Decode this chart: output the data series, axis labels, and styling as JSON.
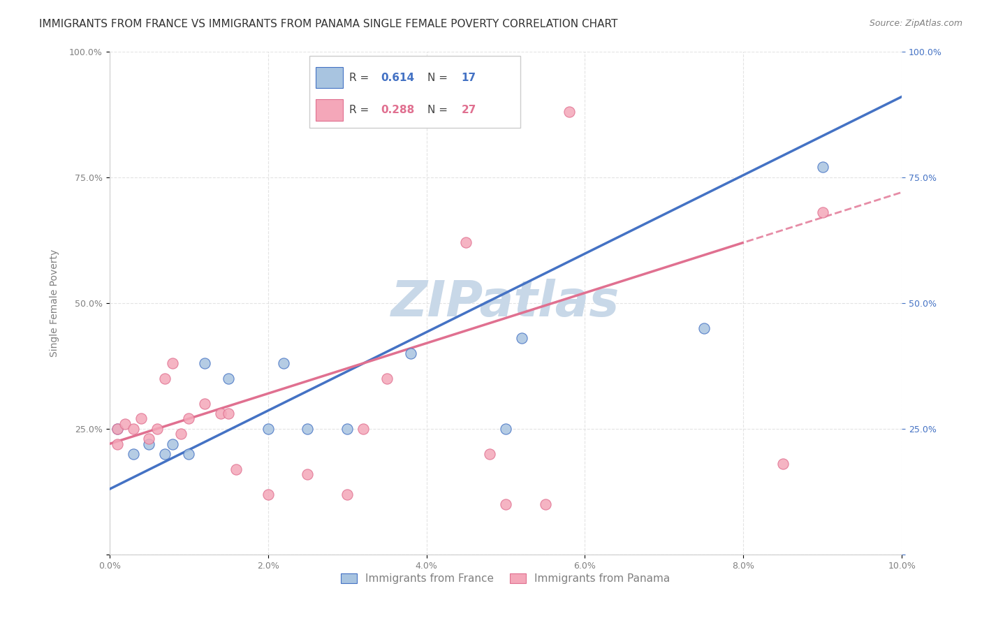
{
  "title": "IMMIGRANTS FROM FRANCE VS IMMIGRANTS FROM PANAMA SINGLE FEMALE POVERTY CORRELATION CHART",
  "source": "Source: ZipAtlas.com",
  "ylabel": "Single Female Poverty",
  "xlim": [
    0.0,
    10.0
  ],
  "ylim": [
    0.0,
    100.0
  ],
  "france_R": 0.614,
  "france_N": 17,
  "panama_R": 0.288,
  "panama_N": 27,
  "france_color": "#a8c4e0",
  "panama_color": "#f4a7b9",
  "france_line_color": "#4472c4",
  "panama_line_color": "#e07090",
  "france_points_x": [
    0.1,
    0.3,
    0.5,
    0.7,
    0.8,
    1.0,
    1.2,
    1.5,
    2.0,
    2.2,
    2.5,
    3.0,
    3.8,
    5.0,
    5.2,
    7.5,
    9.0
  ],
  "france_points_y": [
    25.0,
    20.0,
    22.0,
    20.0,
    22.0,
    20.0,
    38.0,
    35.0,
    25.0,
    38.0,
    25.0,
    25.0,
    40.0,
    25.0,
    43.0,
    45.0,
    77.0
  ],
  "panama_points_x": [
    0.1,
    0.1,
    0.2,
    0.3,
    0.4,
    0.5,
    0.6,
    0.7,
    0.8,
    0.9,
    1.0,
    1.2,
    1.4,
    1.5,
    1.6,
    2.0,
    2.5,
    3.0,
    3.2,
    3.5,
    4.5,
    4.8,
    5.0,
    5.5,
    5.8,
    8.5,
    9.0
  ],
  "panama_points_y": [
    25.0,
    22.0,
    26.0,
    25.0,
    27.0,
    23.0,
    25.0,
    35.0,
    38.0,
    24.0,
    27.0,
    30.0,
    28.0,
    28.0,
    17.0,
    12.0,
    16.0,
    12.0,
    25.0,
    35.0,
    62.0,
    20.0,
    10.0,
    10.0,
    88.0,
    18.0,
    68.0
  ],
  "france_slope": 7.8,
  "france_intercept": 13.0,
  "panama_slope": 5.0,
  "panama_intercept": 22.0,
  "watermark": "ZIPatlas",
  "watermark_color": "#c8d8e8",
  "background_color": "#ffffff",
  "grid_color": "#dddddd",
  "title_fontsize": 11,
  "axis_label_fontsize": 10,
  "tick_fontsize": 9,
  "legend_fontsize": 11,
  "right_tick_color": "#4472c4",
  "marker_size": 120,
  "panama_dashed_start": 8.0
}
